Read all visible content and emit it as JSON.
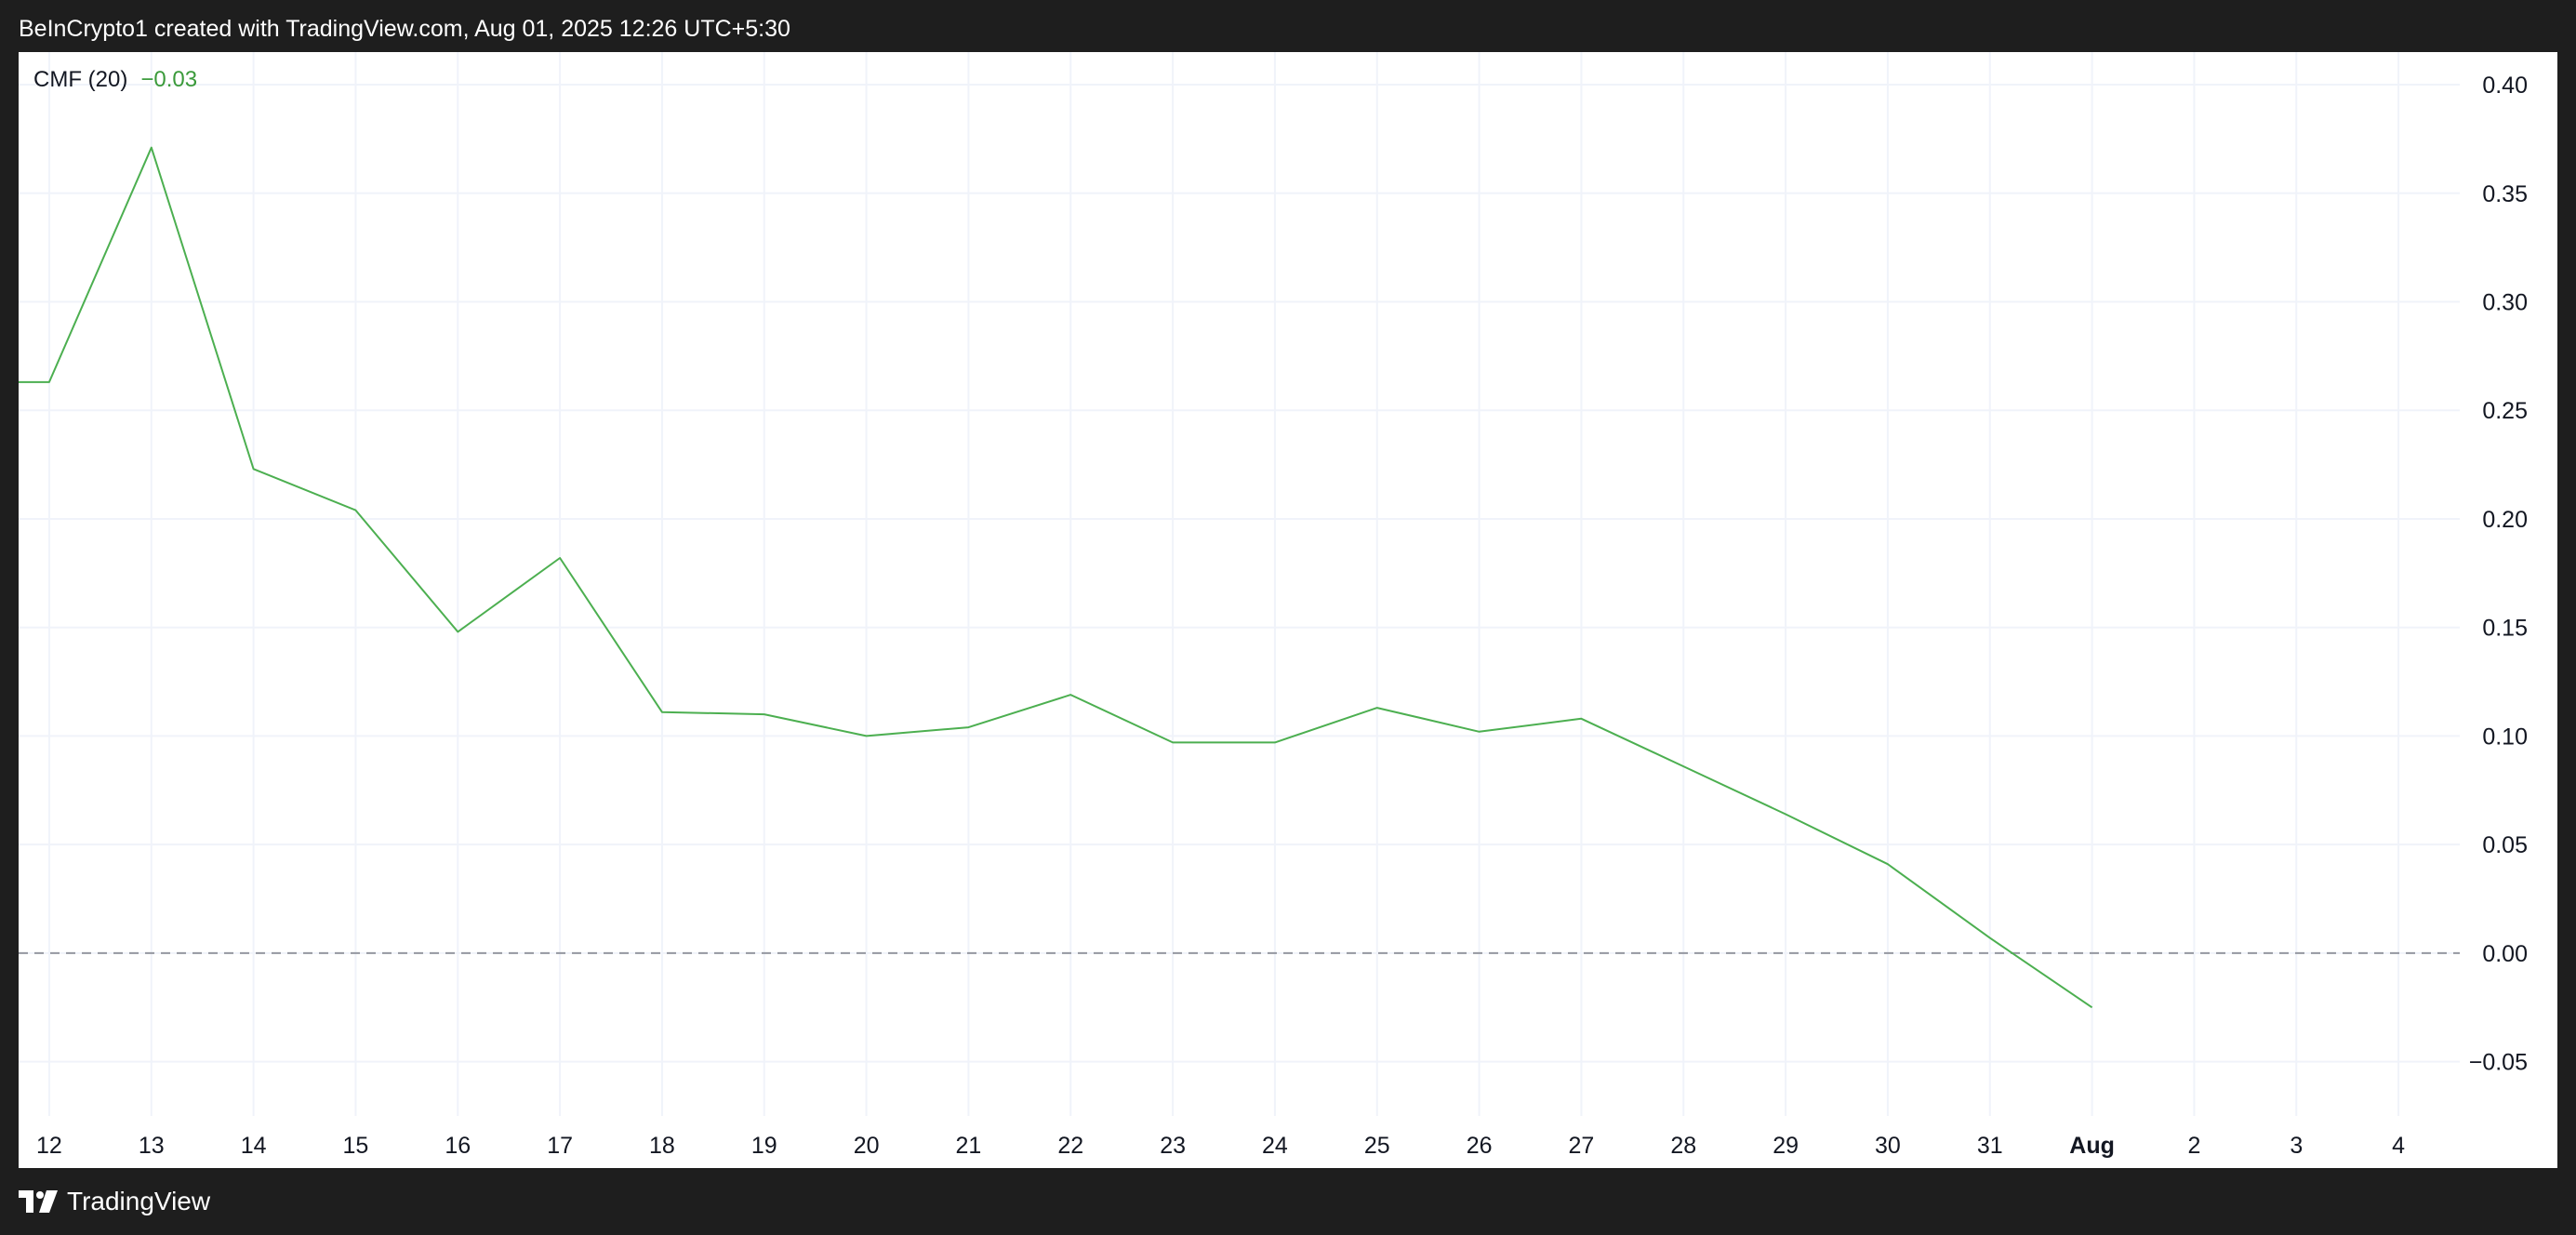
{
  "header": {
    "caption": "BeInCrypto1 created with TradingView.com, Aug 01, 2025 12:26 UTC+5:30"
  },
  "legend": {
    "name": "CMF (20)",
    "value": "−0.03"
  },
  "footer": {
    "brand": "TradingView",
    "logo_icon": "tradingview-logo-icon"
  },
  "colors": {
    "line": "#4caf50",
    "grid": "#f0f3fa",
    "zero_line": "#9598a1",
    "frame_bg": "#1e1e1e"
  },
  "chart_data": {
    "type": "line",
    "title": "",
    "xlabel": "",
    "ylabel": "",
    "ylim": [
      -0.075,
      0.415
    ],
    "x_ticks": [
      {
        "label": "12",
        "i": 0
      },
      {
        "label": "13",
        "i": 1
      },
      {
        "label": "14",
        "i": 2
      },
      {
        "label": "15",
        "i": 3
      },
      {
        "label": "16",
        "i": 4
      },
      {
        "label": "17",
        "i": 5
      },
      {
        "label": "18",
        "i": 6
      },
      {
        "label": "19",
        "i": 7
      },
      {
        "label": "20",
        "i": 8
      },
      {
        "label": "21",
        "i": 9
      },
      {
        "label": "22",
        "i": 10
      },
      {
        "label": "23",
        "i": 11
      },
      {
        "label": "24",
        "i": 12
      },
      {
        "label": "25",
        "i": 13
      },
      {
        "label": "26",
        "i": 14
      },
      {
        "label": "27",
        "i": 15
      },
      {
        "label": "28",
        "i": 16
      },
      {
        "label": "29",
        "i": 17
      },
      {
        "label": "30",
        "i": 18
      },
      {
        "label": "31",
        "i": 19
      },
      {
        "label": "Aug",
        "i": 20,
        "bold": true
      },
      {
        "label": "2",
        "i": 21
      },
      {
        "label": "3",
        "i": 22
      },
      {
        "label": "4",
        "i": 23
      }
    ],
    "x_range": [
      -0.3,
      23.6
    ],
    "y_ticks": [
      {
        "label": "0.40",
        "v": 0.4
      },
      {
        "label": "0.35",
        "v": 0.35
      },
      {
        "label": "0.30",
        "v": 0.3
      },
      {
        "label": "0.25",
        "v": 0.25
      },
      {
        "label": "0.20",
        "v": 0.2
      },
      {
        "label": "0.15",
        "v": 0.15
      },
      {
        "label": "0.10",
        "v": 0.1
      },
      {
        "label": "0.05",
        "v": 0.05
      },
      {
        "label": "0.00",
        "v": 0.0
      },
      {
        "label": "−0.05",
        "v": -0.05
      }
    ],
    "zero_line": 0.0,
    "series": [
      {
        "points": [
          [
            -0.3,
            0.263
          ],
          [
            0,
            0.263
          ],
          [
            1,
            0.371
          ],
          [
            2,
            0.223
          ],
          [
            3,
            0.204
          ],
          [
            4,
            0.148
          ],
          [
            5,
            0.182
          ],
          [
            6,
            0.111
          ],
          [
            7,
            0.11
          ],
          [
            8,
            0.1
          ],
          [
            9,
            0.104
          ],
          [
            10,
            0.119
          ],
          [
            11,
            0.097
          ],
          [
            12,
            0.097
          ],
          [
            13,
            0.113
          ],
          [
            14,
            0.102
          ],
          [
            15,
            0.108
          ],
          [
            16,
            0.086
          ],
          [
            17,
            0.064
          ],
          [
            18,
            0.041
          ],
          [
            19,
            0.007
          ],
          [
            20,
            -0.025
          ]
        ]
      }
    ]
  }
}
